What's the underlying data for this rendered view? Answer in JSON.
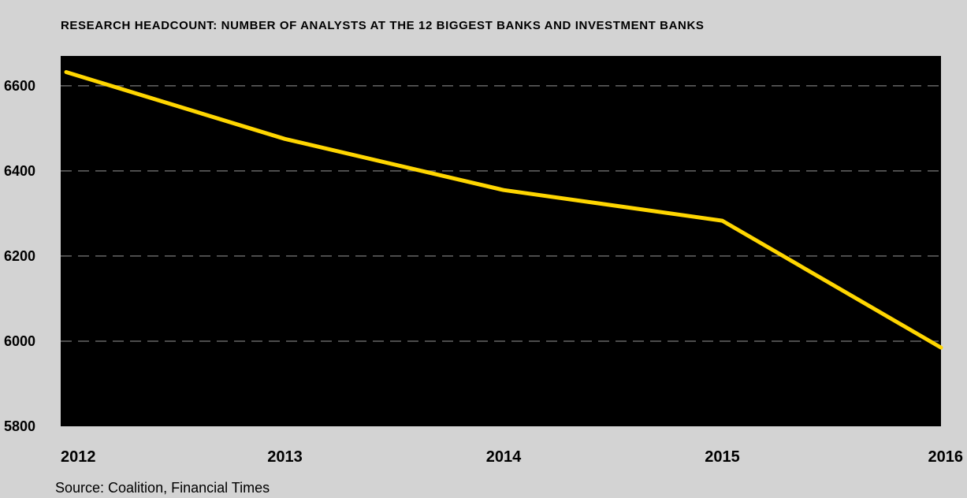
{
  "chart_data": {
    "type": "line",
    "title": "RESEARCH HEADCOUNT: NUMBER OF ANALYSTS AT THE 12 BIGGEST BANKS AND INVESTMENT BANKS",
    "xlabel": "",
    "ylabel": "",
    "categories": [
      "2012",
      "2013",
      "2014",
      "2015",
      "2016"
    ],
    "series": [
      {
        "values": [
          6632,
          6475,
          6355,
          6283,
          5985
        ]
      }
    ],
    "ylim": [
      5800,
      6670
    ],
    "yticks": [
      5800,
      6000,
      6200,
      6400,
      6600
    ],
    "ytick_labels": [
      "5800",
      "6000",
      "6200",
      "6400",
      "6600"
    ],
    "grid": "horizontal dashed",
    "legend": "none",
    "source": "Source: Coalition, Financial Times",
    "colors": {
      "background": "#d3d3d3",
      "plot_background": "#000000",
      "line": "#ffd600",
      "grid": "#666666"
    }
  }
}
